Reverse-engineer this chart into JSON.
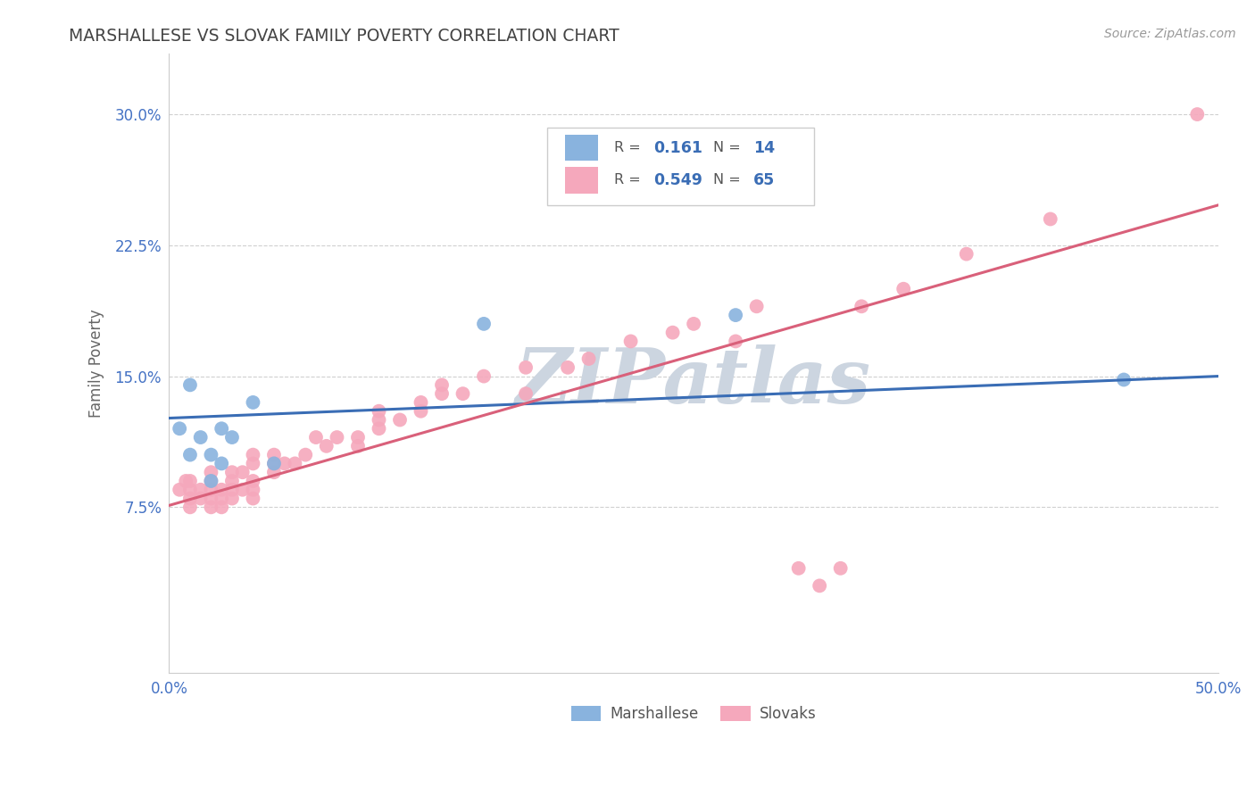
{
  "title": "MARSHALLESE VS SLOVAK FAMILY POVERTY CORRELATION CHART",
  "source": "Source: ZipAtlas.com",
  "ylabel": "Family Poverty",
  "xlim": [
    0,
    0.5
  ],
  "ylim": [
    -0.02,
    0.335
  ],
  "yticks": [
    0.075,
    0.15,
    0.225,
    0.3
  ],
  "ytick_labels": [
    "7.5%",
    "15.0%",
    "22.5%",
    "30.0%"
  ],
  "xticks": [
    0.0,
    0.125,
    0.25,
    0.375,
    0.5
  ],
  "xtick_labels": [
    "0.0%",
    "",
    "",
    "",
    "50.0%"
  ],
  "background_color": "#ffffff",
  "grid_color": "#d0d0d0",
  "watermark_text": "ZIPatlas",
  "watermark_color": "#ccd5e0",
  "legend_R_marshallese": "0.161",
  "legend_N_marshallese": "14",
  "legend_R_slovak": "0.549",
  "legend_N_slovak": "65",
  "marshallese_color": "#89b3de",
  "slovak_color": "#f5a8bc",
  "marshallese_line_color": "#3a6db5",
  "slovak_line_color": "#d9607a",
  "marshallese_x": [
    0.005,
    0.01,
    0.01,
    0.015,
    0.02,
    0.02,
    0.025,
    0.025,
    0.03,
    0.04,
    0.05,
    0.15,
    0.27,
    0.455
  ],
  "marshallese_y": [
    0.12,
    0.145,
    0.105,
    0.115,
    0.09,
    0.105,
    0.1,
    0.12,
    0.115,
    0.135,
    0.1,
    0.18,
    0.185,
    0.148
  ],
  "slovak_x": [
    0.005,
    0.008,
    0.01,
    0.01,
    0.01,
    0.01,
    0.015,
    0.015,
    0.02,
    0.02,
    0.02,
    0.02,
    0.02,
    0.025,
    0.025,
    0.025,
    0.03,
    0.03,
    0.03,
    0.03,
    0.035,
    0.035,
    0.04,
    0.04,
    0.04,
    0.04,
    0.04,
    0.05,
    0.05,
    0.05,
    0.055,
    0.06,
    0.065,
    0.07,
    0.075,
    0.08,
    0.09,
    0.09,
    0.1,
    0.1,
    0.1,
    0.11,
    0.12,
    0.12,
    0.13,
    0.13,
    0.14,
    0.15,
    0.17,
    0.17,
    0.19,
    0.2,
    0.22,
    0.24,
    0.25,
    0.27,
    0.28,
    0.3,
    0.31,
    0.32,
    0.33,
    0.35,
    0.38,
    0.42,
    0.49
  ],
  "slovak_y": [
    0.085,
    0.09,
    0.075,
    0.08,
    0.085,
    0.09,
    0.08,
    0.085,
    0.075,
    0.08,
    0.085,
    0.09,
    0.095,
    0.075,
    0.08,
    0.085,
    0.08,
    0.085,
    0.09,
    0.095,
    0.085,
    0.095,
    0.08,
    0.085,
    0.09,
    0.1,
    0.105,
    0.095,
    0.1,
    0.105,
    0.1,
    0.1,
    0.105,
    0.115,
    0.11,
    0.115,
    0.11,
    0.115,
    0.12,
    0.125,
    0.13,
    0.125,
    0.13,
    0.135,
    0.14,
    0.145,
    0.14,
    0.15,
    0.14,
    0.155,
    0.155,
    0.16,
    0.17,
    0.175,
    0.18,
    0.17,
    0.19,
    0.04,
    0.03,
    0.04,
    0.19,
    0.2,
    0.22,
    0.24,
    0.3
  ]
}
